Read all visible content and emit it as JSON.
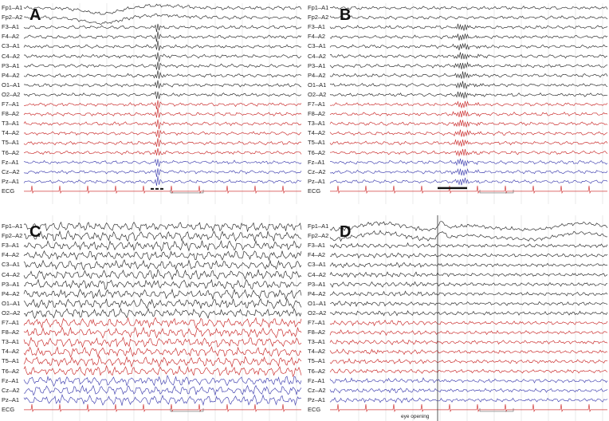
{
  "channels": [
    "Fp1–A1",
    "Fp2–A2",
    "F3–A1",
    "F4–A2",
    "C3–A1",
    "C4–A2",
    "P3–A1",
    "P4–A2",
    "O1–A1",
    "O2–A2",
    "F7–A1",
    "F8–A2",
    "T3–A1",
    "T4–A2",
    "T5–A1",
    "T6–A2",
    "Fz–A1",
    "Cz–A2",
    "Pz–A1",
    "ECG"
  ],
  "colors": {
    "black_group": "#333333",
    "red_group": "#cc3333",
    "blue_group": "#4a4ab4",
    "ecg": "#d23c3c",
    "grid": "#dddddd"
  },
  "panels": [
    {
      "id": "A",
      "label": "A",
      "marker": "dashed"
    },
    {
      "id": "B",
      "label": "B",
      "marker": "solid"
    },
    {
      "id": "C",
      "label": "C",
      "marker": "none"
    },
    {
      "id": "D",
      "label": "D",
      "marker": "event",
      "event_label": "eye opening"
    }
  ],
  "scale_bar": {
    "time": "1s",
    "amplitude": "50uV"
  }
}
